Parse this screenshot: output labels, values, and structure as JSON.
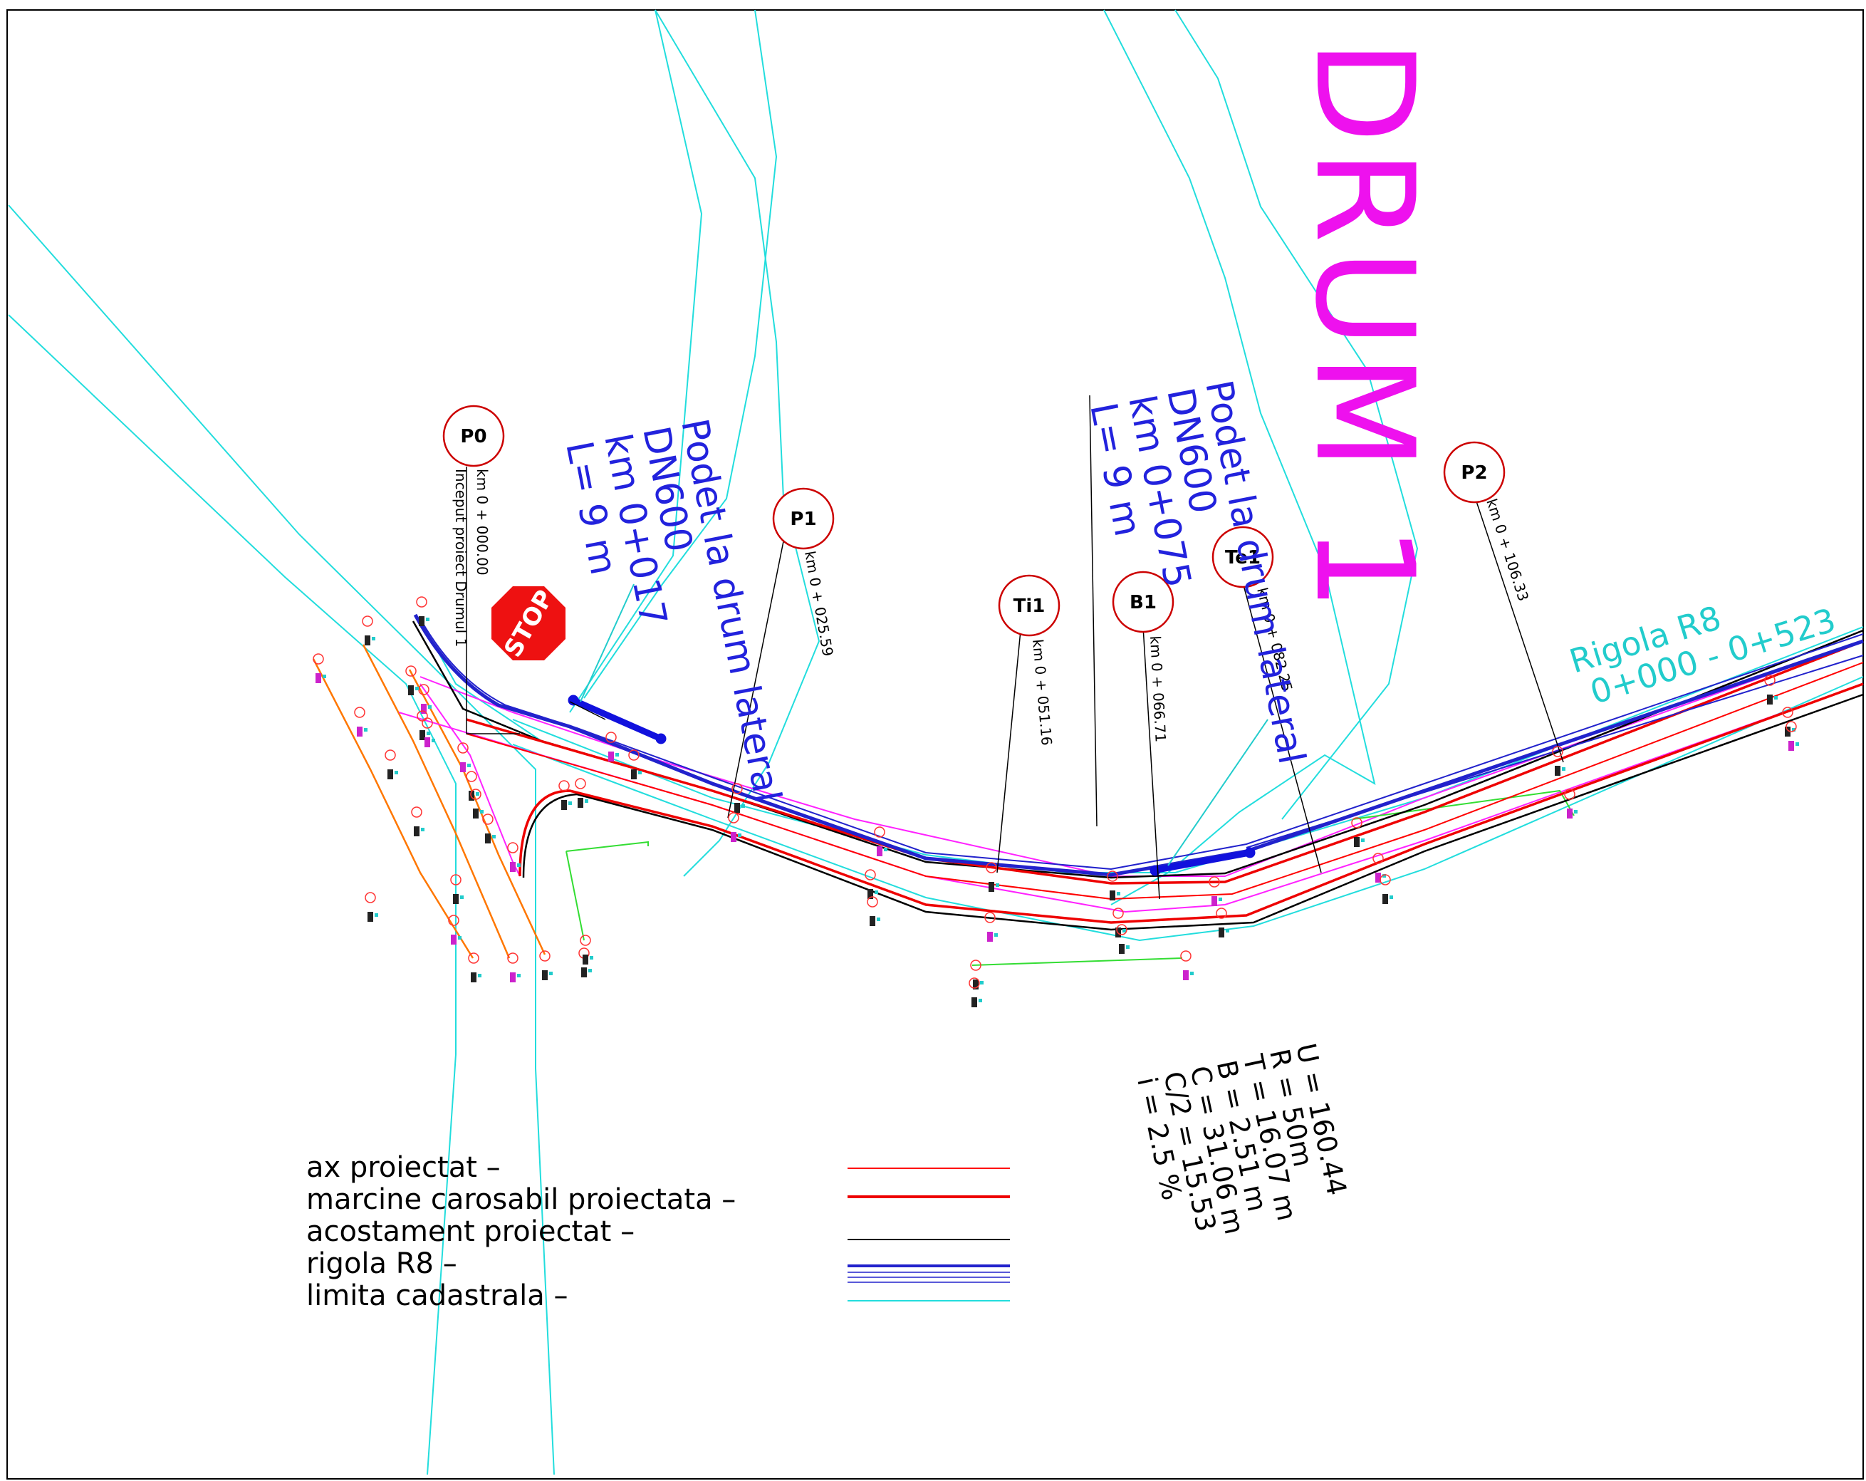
{
  "title": "DRUM 1",
  "rigola_label": {
    "line1": "Rigola R8",
    "line2": "0+000 - 0+523"
  },
  "culverts": [
    {
      "id": "culvert-1",
      "line1": "Podet la drum lateral",
      "line2": "DN600",
      "line3": "km 0+017",
      "line4": "L= 9 m"
    },
    {
      "id": "culvert-2",
      "line1": "Podet la drum lateral",
      "line2": "DN600",
      "line3": "km 0+075",
      "line4": "L= 9 m"
    }
  ],
  "stations": [
    {
      "id": "P0",
      "label": "P0",
      "km": "km 0 + 000.00",
      "note": "Inceput proiect Drumul 1"
    },
    {
      "id": "P1",
      "label": "P1",
      "km": "km 0 + 025.59",
      "note": ""
    },
    {
      "id": "Ti1",
      "label": "Ti1",
      "km": "km 0 + 051.16",
      "note": ""
    },
    {
      "id": "B1",
      "label": "B1",
      "km": "km 0 + 066.71",
      "note": ""
    },
    {
      "id": "Te1",
      "label": "Te1",
      "km": "km 0 + 082.25",
      "note": ""
    },
    {
      "id": "P2",
      "label": "P2",
      "km": "km 0 + 106.33",
      "note": ""
    }
  ],
  "curve_params": [
    "U = 160.44",
    "R = 50m",
    "T = 16.07 m",
    "B = 2.51 m",
    "C = 31.06 m",
    "C/2 = 15.53",
    "i = 2.5 %"
  ],
  "stop_sign": "STOP",
  "legend": [
    {
      "label": "ax proiectat –",
      "color": "#ff0000",
      "style": "thin"
    },
    {
      "label": "marcine carosabil proiectata –",
      "color": "#ee0000",
      "style": "thick"
    },
    {
      "label": "acostament proiectat –",
      "color": "#000000",
      "style": "thin"
    },
    {
      "label": "rigola R8 –",
      "color": "#2222cc",
      "style": "multi"
    },
    {
      "label": "limita cadastrala –",
      "color": "#22cccc",
      "style": "thin"
    }
  ],
  "colors": {
    "cadastral": "#22dddd",
    "axis": "#ff0000",
    "edge": "#ee0000",
    "shoulder": "#000000",
    "ditch": "#2222cc",
    "title": "#ee11ee",
    "orange": "#ff7700",
    "magenta": "#ff22ff",
    "green": "#33dd33"
  }
}
